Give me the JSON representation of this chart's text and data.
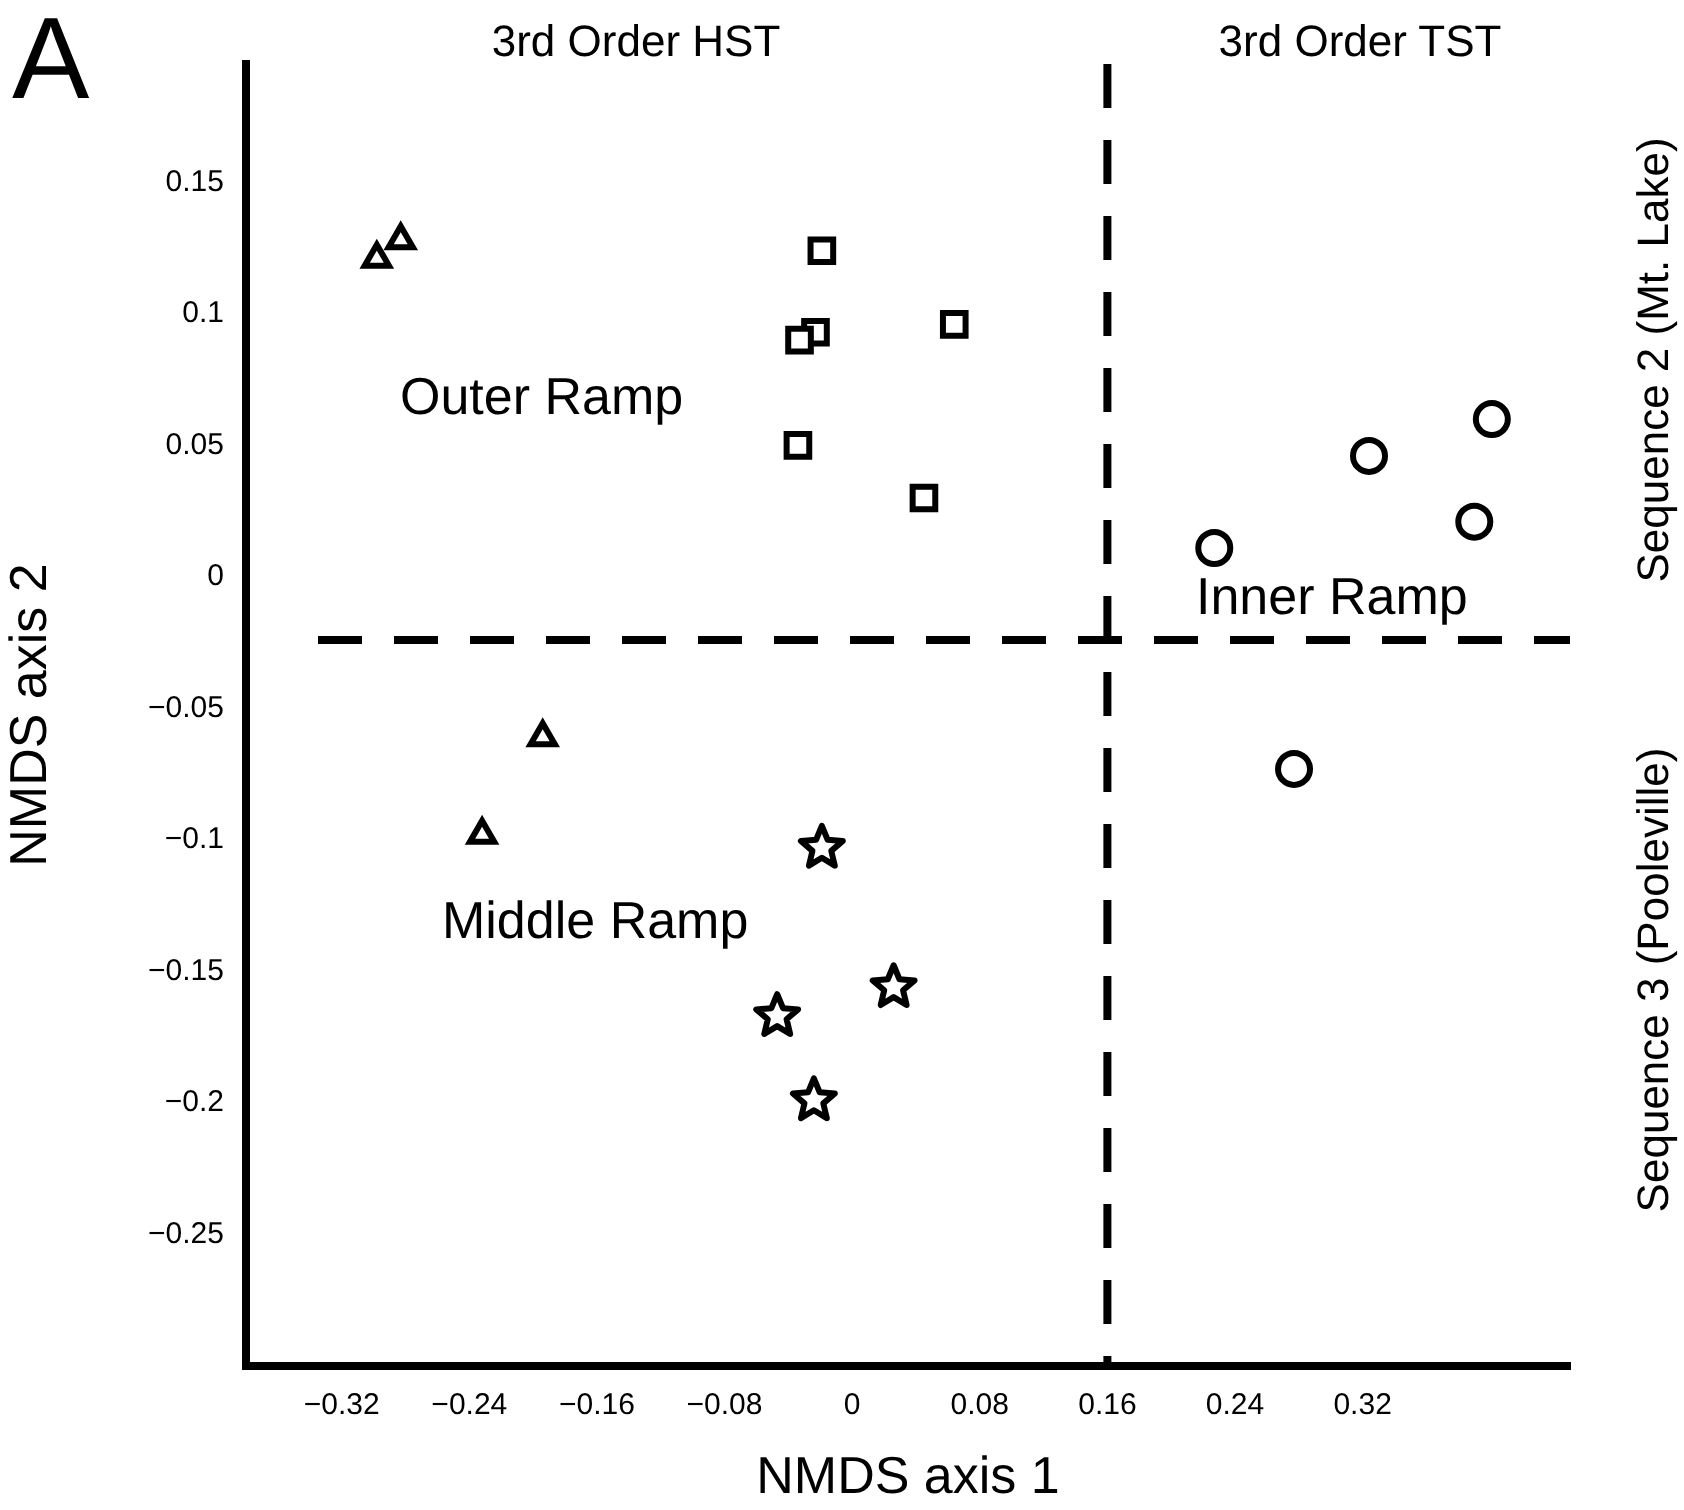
{
  "chart_data": {
    "type": "scatter",
    "title": "A",
    "xlabel": "NMDS axis 1",
    "ylabel": "NMDS axis 2",
    "xlim": [
      -0.38,
      0.45
    ],
    "ylim": [
      -0.3,
      0.195
    ],
    "xticks": [
      {
        "value": -0.32,
        "label": "−0.32"
      },
      {
        "value": -0.24,
        "label": "−0.24"
      },
      {
        "value": -0.16,
        "label": "−0.16"
      },
      {
        "value": -0.08,
        "label": "−0.08"
      },
      0,
      0.08,
      0.16,
      0.24,
      0.32
    ],
    "yticks": [
      0.15,
      0.1,
      0.05,
      0,
      {
        "value": -0.05,
        "label": "−0.05"
      },
      {
        "value": -0.1,
        "label": "−0.1"
      },
      {
        "value": -0.15,
        "label": "−0.15"
      },
      {
        "value": -0.2,
        "label": "−0.2"
      },
      {
        "value": -0.25,
        "label": "−0.25"
      }
    ],
    "grid": false,
    "legend": false,
    "series": [
      {
        "marker": "triangle",
        "color": "#000000",
        "x": [
          -0.298,
          -0.283,
          -0.194,
          -0.232
        ],
        "values": [
          0.121,
          0.128,
          -0.061,
          -0.098
        ]
      },
      {
        "marker": "square",
        "color": "#000000",
        "x": [
          -0.019,
          -0.023,
          -0.033,
          -0.034,
          0.045,
          0.064
        ],
        "values": [
          0.124,
          0.093,
          0.09,
          0.05,
          0.03,
          0.096
        ]
      },
      {
        "marker": "star",
        "color": "#000000",
        "x": [
          -0.019,
          0.026,
          -0.047,
          -0.024
        ],
        "values": [
          -0.103,
          -0.156,
          -0.167,
          -0.199
        ]
      },
      {
        "marker": "circle",
        "color": "#000000",
        "x": [
          0.227,
          0.324,
          0.401,
          0.39,
          0.277
        ],
        "values": [
          0.011,
          0.046,
          0.06,
          0.021,
          -0.073
        ]
      }
    ],
    "ref_lines": [
      {
        "axis": "x",
        "value": 0.16,
        "line_style": "dashed",
        "color": "#000000"
      },
      {
        "axis": "y",
        "value": -0.024,
        "line_style": "dashed",
        "color": "#000000"
      }
    ],
    "annotations": [
      "3rd Order HST",
      "3rd Order TST",
      "Sequence 2 (Mt. Lake)",
      "Sequence 3 (Pooleville)",
      "Outer Ramp",
      "Middle Ramp",
      "Inner Ramp"
    ]
  }
}
